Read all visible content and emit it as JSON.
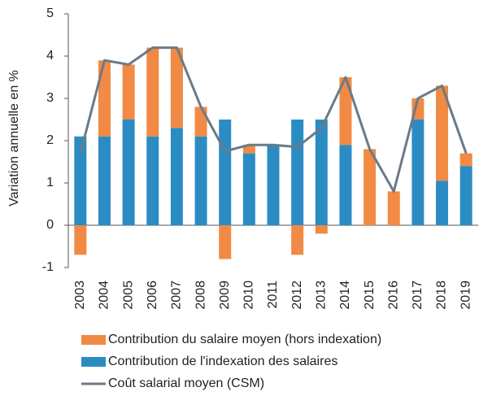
{
  "chart_data": {
    "type": "bar",
    "stacked": true,
    "y_label": "Variation annuelle en %",
    "categories": [
      "2003",
      "2004",
      "2005",
      "2006",
      "2007",
      "2008",
      "2009",
      "2010",
      "2011",
      "2012",
      "2013",
      "2014",
      "2015",
      "2016",
      "2017",
      "2018",
      "2019"
    ],
    "series": [
      {
        "name": "Contribution du salaire moyen (hors indexation)",
        "type": "bar",
        "color": "#f08a45",
        "values": [
          -0.7,
          1.8,
          1.3,
          2.1,
          1.9,
          0.7,
          -0.8,
          0.2,
          0,
          -0.7,
          -0.2,
          1.6,
          1.8,
          0.8,
          0.5,
          2.25,
          0.3
        ]
      },
      {
        "name": "Contribution de l'indexation des salaires",
        "type": "bar",
        "color": "#2b8cc4",
        "values": [
          2.1,
          2.1,
          2.5,
          2.1,
          2.3,
          2.1,
          2.5,
          1.7,
          1.9,
          2.5,
          2.5,
          1.9,
          0,
          0,
          2.5,
          1.05,
          1.4
        ]
      },
      {
        "name": "Coût salarial moyen (CSM)",
        "type": "line",
        "color": "#6b7a88",
        "values": [
          1.7,
          3.9,
          3.8,
          4.2,
          4.2,
          2.8,
          1.75,
          1.9,
          1.9,
          1.85,
          2.3,
          3.5,
          1.8,
          0.8,
          3.0,
          3.3,
          1.7
        ]
      }
    ],
    "ylim": [
      -1,
      5
    ],
    "yticks": [
      -1,
      0,
      1,
      2,
      3,
      4,
      5
    ],
    "grid": false
  }
}
